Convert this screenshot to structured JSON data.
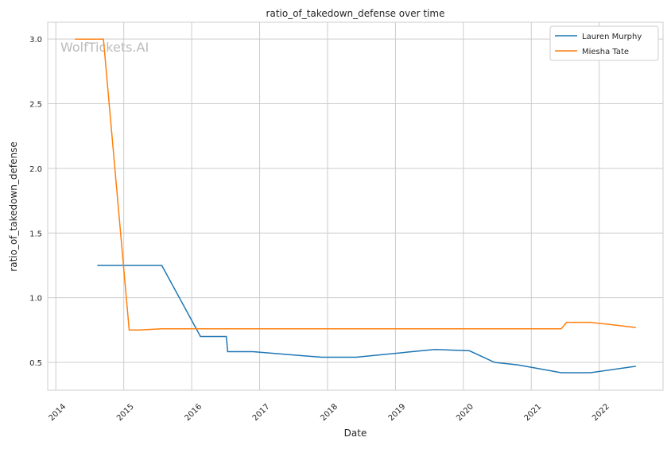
{
  "chart_data": {
    "type": "line",
    "title": "ratio_of_takedown_defense over time",
    "xlabel": "Date",
    "ylabel": "ratio_of_takedown_defense",
    "xlim": [
      2013.88,
      2022.94
    ],
    "ylim": [
      0.285,
      3.13
    ],
    "xticks": [
      2014,
      2015,
      2016,
      2017,
      2018,
      2019,
      2020,
      2021,
      2022
    ],
    "xtick_labels": [
      "2014",
      "2015",
      "2016",
      "2017",
      "2018",
      "2019",
      "2020",
      "2021",
      "2022"
    ],
    "yticks": [
      0.5,
      1.0,
      1.5,
      2.0,
      2.5,
      3.0
    ],
    "ytick_labels": [
      "0.5",
      "1.0",
      "1.5",
      "2.0",
      "2.5",
      "3.0"
    ],
    "grid": true,
    "legend_position": "top-right",
    "watermark": "WolfTickets.AI",
    "series": [
      {
        "name": "Lauren Murphy",
        "color": "#1f77b4",
        "x": [
          2014.61,
          2015.56,
          2016.13,
          2016.51,
          2016.53,
          2016.9,
          2017.91,
          2018.42,
          2019.58,
          2020.09,
          2020.46,
          2020.81,
          2021.44,
          2021.87,
          2022.54
        ],
        "y": [
          1.25,
          1.25,
          0.7,
          0.7,
          0.583,
          0.583,
          0.54,
          0.54,
          0.6,
          0.59,
          0.5,
          0.48,
          0.42,
          0.42,
          0.47
        ]
      },
      {
        "name": "Miesha Tate",
        "color": "#ff7f0e",
        "x": [
          2014.28,
          2014.7,
          2015.08,
          2015.23,
          2015.56,
          2021.44,
          2021.52,
          2021.87,
          2022.54
        ],
        "y": [
          3.0,
          3.0,
          0.75,
          0.75,
          0.76,
          0.76,
          0.81,
          0.81,
          0.77
        ]
      }
    ]
  }
}
